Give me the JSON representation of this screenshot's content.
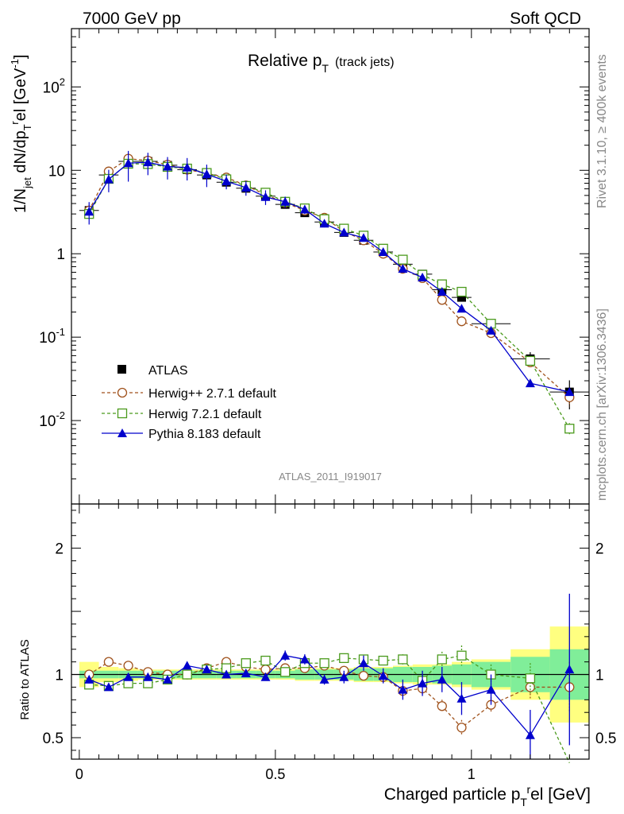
{
  "header": {
    "energy": "7000 GeV pp",
    "process": "Soft QCD"
  },
  "side": {
    "rivet": "Rivet 3.1.10, ≥ 400k events",
    "mcplots": "mcplots.cern.ch [arXiv:1306.3436]"
  },
  "chart_data": {
    "type": "line",
    "title": "Relative p_T (track jets)",
    "title_main": "Relative p",
    "title_sub": "T",
    "title_paren": "(track jets)",
    "analysis": "ATLAS_2011_I919017",
    "xlabel": "Charged particle p_T^rel [GeV]",
    "xlabel_main": "Charged particle p",
    "xlabel_sub": "T",
    "xlabel_sup": "r",
    "xlabel_tail": "el [GeV]",
    "ylabel": "1/N_jet dN/dp_T^rel [GeV^-1]",
    "ylabel_a": "1/N",
    "ylabel_jet": "jet",
    "ylabel_b": " dN/dp",
    "ylabel_T": "T",
    "ylabel_r": "r",
    "ylabel_c": "el [GeV",
    "ylabel_exp": "-1",
    "ylabel_d": "]",
    "ratio_ylabel": "Ratio to ATLAS",
    "xlim": [
      -0.02,
      1.3
    ],
    "ylim_main": [
      0.001,
      500
    ],
    "ylim_ratio": [
      0.33,
      2.35
    ],
    "yscale_main": "log",
    "legend_position": "bottom-left",
    "x_ticks": [
      {
        "v": 0,
        "label": "0"
      },
      {
        "v": 0.5,
        "label": "0.5"
      },
      {
        "v": 1,
        "label": "1"
      }
    ],
    "y_ticks_main": [
      {
        "v": 0.01,
        "base": "10",
        "exp": "-2"
      },
      {
        "v": 0.1,
        "base": "10",
        "exp": "-1"
      },
      {
        "v": 1,
        "base": "1",
        "exp": ""
      },
      {
        "v": 10,
        "base": "10",
        "exp": ""
      },
      {
        "v": 100,
        "base": "10",
        "exp": "2"
      }
    ],
    "y_ticks_ratio": [
      {
        "v": 0.5,
        "label": "0.5"
      },
      {
        "v": 1,
        "label": "1"
      },
      {
        "v": 2,
        "label": "2"
      }
    ],
    "x": [
      0.025,
      0.075,
      0.125,
      0.175,
      0.225,
      0.275,
      0.325,
      0.375,
      0.425,
      0.475,
      0.525,
      0.575,
      0.625,
      0.675,
      0.725,
      0.775,
      0.825,
      0.875,
      0.925,
      0.975,
      1.05,
      1.15,
      1.25
    ],
    "x_halfwidth": [
      0.025,
      0.025,
      0.025,
      0.025,
      0.025,
      0.025,
      0.025,
      0.025,
      0.025,
      0.025,
      0.025,
      0.025,
      0.025,
      0.025,
      0.025,
      0.025,
      0.025,
      0.025,
      0.025,
      0.025,
      0.05,
      0.05,
      0.05
    ],
    "data": {
      "name": "ATLAS",
      "values": [
        3.3,
        8.8,
        12.8,
        12.8,
        11.5,
        10.2,
        8.8,
        7.2,
        6.1,
        4.9,
        3.9,
        3.1,
        2.4,
        1.8,
        1.45,
        1.05,
        0.75,
        0.57,
        0.37,
        0.3,
        0.145,
        0.055,
        0.022
      ],
      "stat_band": [
        0.03,
        0.03,
        0.03,
        0.03,
        0.03,
        0.03,
        0.03,
        0.03,
        0.03,
        0.03,
        0.03,
        0.04,
        0.04,
        0.04,
        0.05,
        0.05,
        0.06,
        0.06,
        0.07,
        0.08,
        0.1,
        0.14,
        0.2
      ],
      "total_band": [
        0.1,
        0.06,
        0.05,
        0.04,
        0.04,
        0.04,
        0.04,
        0.04,
        0.04,
        0.04,
        0.04,
        0.05,
        0.05,
        0.05,
        0.06,
        0.06,
        0.07,
        0.08,
        0.08,
        0.1,
        0.12,
        0.2,
        0.38
      ]
    },
    "series": [
      {
        "name": "Herwig++ 2.7.1 default",
        "color": "#a0521c",
        "marker": "circle",
        "values": [
          3.3,
          9.7,
          13.8,
          13.1,
          11.7,
          10.2,
          9.2,
          8.2,
          6.6,
          5.1,
          4.1,
          3.3,
          2.7,
          1.85,
          1.45,
          1.0,
          0.66,
          0.51,
          0.28,
          0.155,
          0.112,
          0.05,
          0.019
        ],
        "ratio": [
          1.0,
          1.1,
          1.07,
          1.02,
          1.0,
          1.0,
          1.05,
          1.1,
          1.06,
          1.04,
          1.05,
          1.05,
          1.07,
          1.03,
          0.99,
          0.98,
          0.87,
          0.89,
          0.75,
          0.58,
          0.76,
          0.9,
          0.9
        ],
        "ratio_err": [
          0.01,
          0.01,
          0.01,
          0.01,
          0.01,
          0.01,
          0.01,
          0.01,
          0.01,
          0.01,
          0.01,
          0.02,
          0.02,
          0.02,
          0.02,
          0.03,
          0.04,
          0.05,
          0.05,
          0.06,
          0.06,
          0.1,
          0.2
        ]
      },
      {
        "name": "Herwig 7.2.1 default",
        "color": "#4a9a1c",
        "marker": "square",
        "values": [
          3.0,
          7.9,
          12.0,
          11.9,
          11.0,
          10.5,
          9.3,
          7.8,
          6.5,
          5.4,
          4.2,
          3.5,
          2.6,
          2.0,
          1.65,
          1.15,
          0.85,
          0.56,
          0.43,
          0.35,
          0.145,
          0.052,
          0.008
        ],
        "ratio": [
          0.92,
          0.91,
          0.93,
          0.93,
          0.96,
          1.0,
          1.04,
          1.05,
          1.09,
          1.11,
          1.02,
          1.09,
          1.09,
          1.13,
          1.12,
          1.11,
          1.12,
          0.95,
          1.12,
          1.15,
          1.0,
          0.97,
          0.3
        ],
        "ratio_err": [
          0.01,
          0.01,
          0.01,
          0.01,
          0.01,
          0.01,
          0.01,
          0.01,
          0.01,
          0.01,
          0.01,
          0.02,
          0.02,
          0.02,
          0.02,
          0.03,
          0.04,
          0.05,
          0.06,
          0.08,
          0.08,
          0.12,
          0.05
        ]
      },
      {
        "name": "Pythia 8.183 default",
        "color": "#0000cc",
        "marker": "triangle",
        "values": [
          3.2,
          7.8,
          12.2,
          12.5,
          11.1,
          10.8,
          9.0,
          7.4,
          6.2,
          4.8,
          4.2,
          3.4,
          2.3,
          1.8,
          1.55,
          1.05,
          0.66,
          0.52,
          0.35,
          0.22,
          0.12,
          0.028,
          0.022
        ],
        "ratio": [
          0.96,
          0.9,
          0.98,
          0.98,
          0.96,
          1.07,
          1.04,
          1.0,
          1.01,
          0.98,
          1.15,
          1.12,
          0.96,
          0.98,
          1.09,
          0.99,
          0.88,
          0.93,
          0.96,
          0.81,
          0.88,
          0.52,
          1.04
        ],
        "ratio_err": [
          0.03,
          0.02,
          0.02,
          0.02,
          0.02,
          0.03,
          0.02,
          0.03,
          0.03,
          0.03,
          0.04,
          0.04,
          0.04,
          0.05,
          0.06,
          0.06,
          0.08,
          0.1,
          0.1,
          0.13,
          0.12,
          0.2,
          0.6
        ],
        "main_err": [
          0.3,
          0.3,
          0.4,
          0.3,
          0.3,
          0.3,
          0.3,
          0.2,
          0.2,
          0.2,
          0.15,
          0.12,
          0.1,
          0.08,
          0.07,
          0.05,
          0.05,
          0.04,
          0.03,
          0.025,
          0.015,
          0.012,
          0.011
        ]
      }
    ]
  }
}
